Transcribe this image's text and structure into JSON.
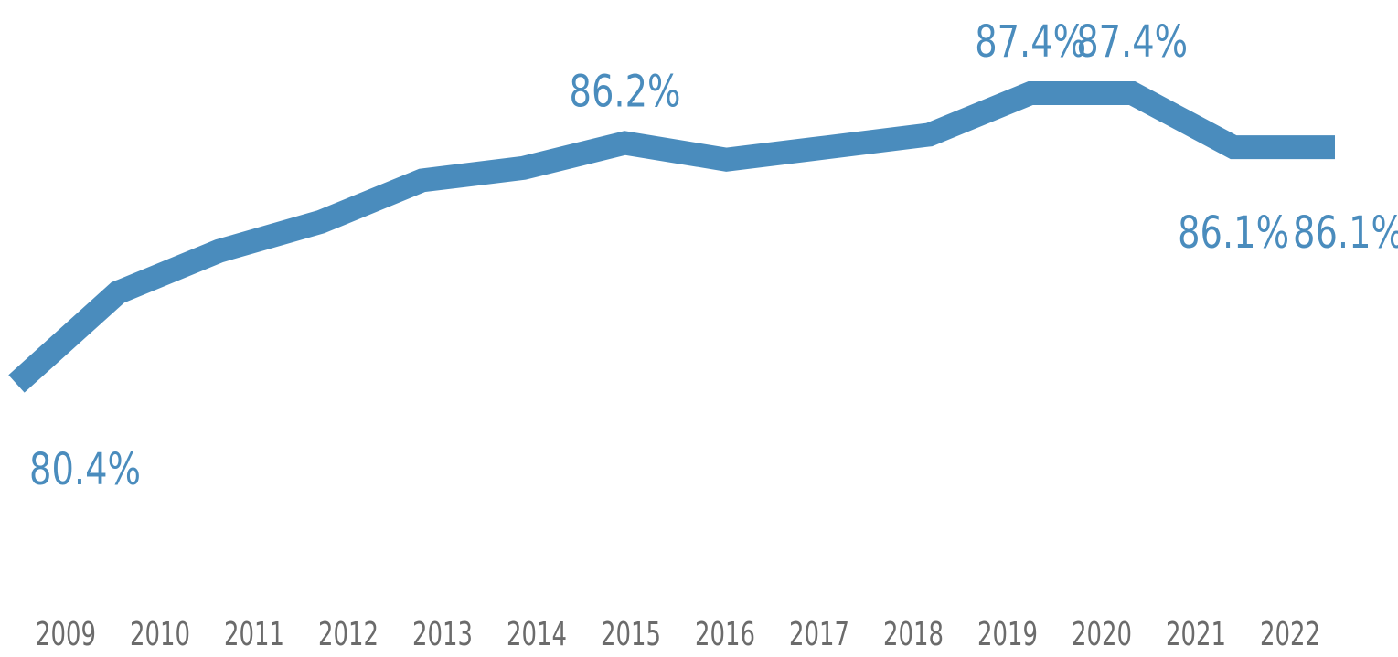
{
  "chart_data": {
    "type": "line",
    "title": "",
    "xlabel": "",
    "ylabel": "",
    "x": [
      "2009",
      "2010",
      "2011",
      "2012",
      "2013",
      "2014",
      "2015",
      "2016",
      "2017",
      "2018",
      "2019",
      "2020",
      "2021",
      "2022"
    ],
    "series": [
      {
        "values": [
          80.4,
          82.6,
          83.6,
          84.3,
          85.3,
          85.6,
          86.2,
          85.8,
          86.1,
          86.4,
          87.4,
          87.4,
          86.1,
          86.1
        ],
        "color": "#4A8CBD"
      }
    ],
    "data_labels": [
      {
        "index": 0,
        "text": "80.4%",
        "position": "below"
      },
      {
        "index": 6,
        "text": "86.2%",
        "position": "above"
      },
      {
        "index": 10,
        "text": "87.4%",
        "position": "above"
      },
      {
        "index": 11,
        "text": "87.4%",
        "position": "above"
      },
      {
        "index": 12,
        "text": "86.1%",
        "position": "below"
      },
      {
        "index": 13,
        "text": "86.1%",
        "position": "below"
      }
    ],
    "ylim": [
      77.5,
      88.5
    ],
    "grid": false,
    "legend": "none",
    "tick_label_color": "#6B6B6B"
  }
}
